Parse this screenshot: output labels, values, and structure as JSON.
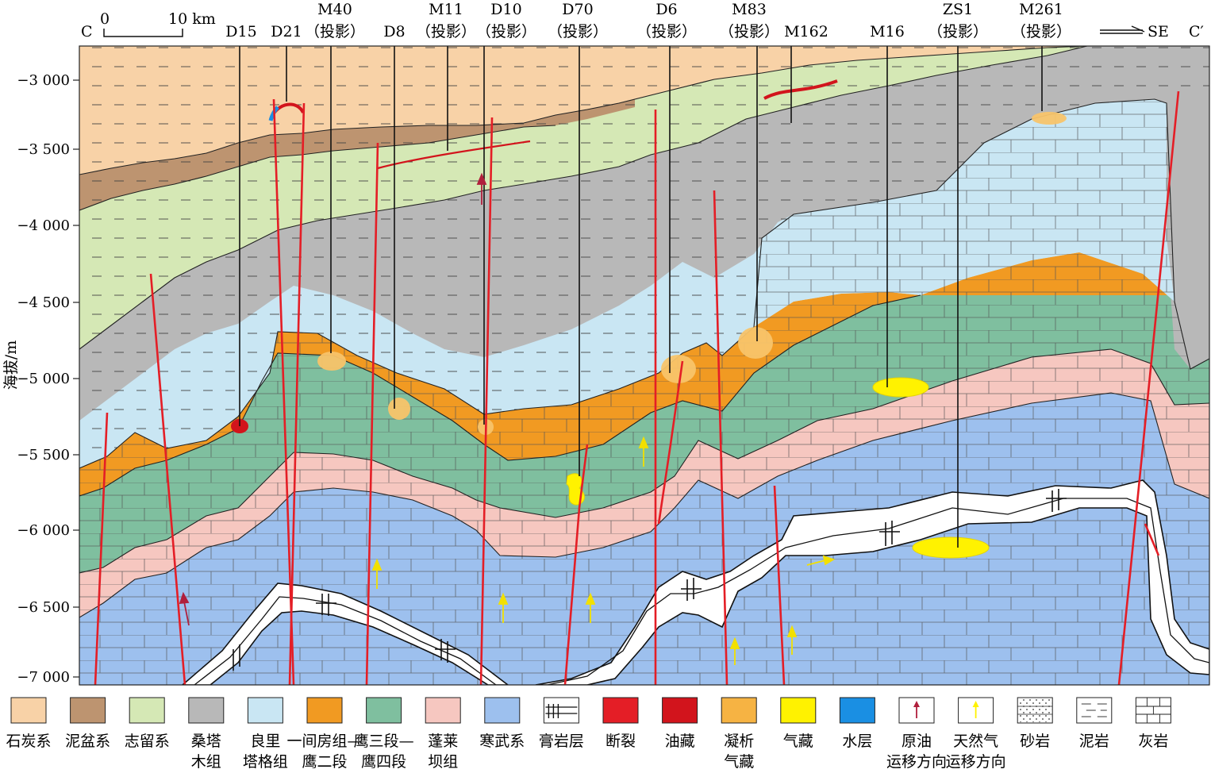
{
  "section": {
    "left_end": "C",
    "right_end": "C′",
    "direction": "SE",
    "scale_zero": "0",
    "scale_label": "10 km",
    "y_axis_label": "海拔/m",
    "y_ticks": [
      "−3 000",
      "−3 500",
      "−4 000",
      "−4 500",
      "−5 000",
      "−5 500",
      "−6 000",
      "−6 500",
      "−7 000"
    ]
  },
  "wells": [
    {
      "name": "D15",
      "note": ""
    },
    {
      "name": "D21",
      "note": ""
    },
    {
      "name": "M40",
      "note": "（投影）"
    },
    {
      "name": "D8",
      "note": ""
    },
    {
      "name": "M11",
      "note": "（投影）"
    },
    {
      "name": "D10",
      "note": "（投影）"
    },
    {
      "name": "D70",
      "note": "（投影）"
    },
    {
      "name": "D6",
      "note": "（投影）"
    },
    {
      "name": "M83",
      "note": "（投影）"
    },
    {
      "name": "M162",
      "note": ""
    },
    {
      "name": "M16",
      "note": ""
    },
    {
      "name": "ZS1",
      "note": "（投影）"
    },
    {
      "name": "M261",
      "note": "（投影）"
    }
  ],
  "legend": [
    {
      "label": "石炭系",
      "label2": "",
      "color": "#f8d2a7"
    },
    {
      "label": "泥盆系",
      "label2": "",
      "color": "#bd9470"
    },
    {
      "label": "志留系",
      "label2": "",
      "color": "#d5e8b5"
    },
    {
      "label": "桑塔",
      "label2": "木组",
      "color": "#b8b8b8"
    },
    {
      "label": "良里",
      "label2": "塔格组",
      "color": "#c9e6f3"
    },
    {
      "label": "一间房组—",
      "label2": "鹰二段",
      "color": "#f19a22"
    },
    {
      "label": "鹰三段—",
      "label2": "鹰四段",
      "color": "#7fbf9f"
    },
    {
      "label": "蓬莱",
      "label2": "坝组",
      "color": "#f6c7c0"
    },
    {
      "label": "寒武系",
      "label2": "",
      "color": "#9dc0ee"
    },
    {
      "label": "膏岩层",
      "label2": "",
      "color": "#ffffff"
    },
    {
      "label": "断裂",
      "label2": "",
      "color": "#e41e26"
    },
    {
      "label": "油藏",
      "label2": "",
      "color": "#d2141c"
    },
    {
      "label": "凝析",
      "label2": "气藏",
      "color": "#f6b343"
    },
    {
      "label": "气藏",
      "label2": "",
      "color": "#fff200"
    },
    {
      "label": "水层",
      "label2": "",
      "color": "#1a8fe3"
    },
    {
      "label": "原油",
      "label2": "运移方向",
      "color": "#b01f3c"
    },
    {
      "label": "天然气",
      "label2": "运移方向",
      "color": "#fff200"
    },
    {
      "label": "砂岩",
      "label2": "",
      "color": "#ffffff"
    },
    {
      "label": "泥岩",
      "label2": "",
      "color": "#ffffff"
    },
    {
      "label": "灰岩",
      "label2": "",
      "color": "#ffffff"
    }
  ]
}
